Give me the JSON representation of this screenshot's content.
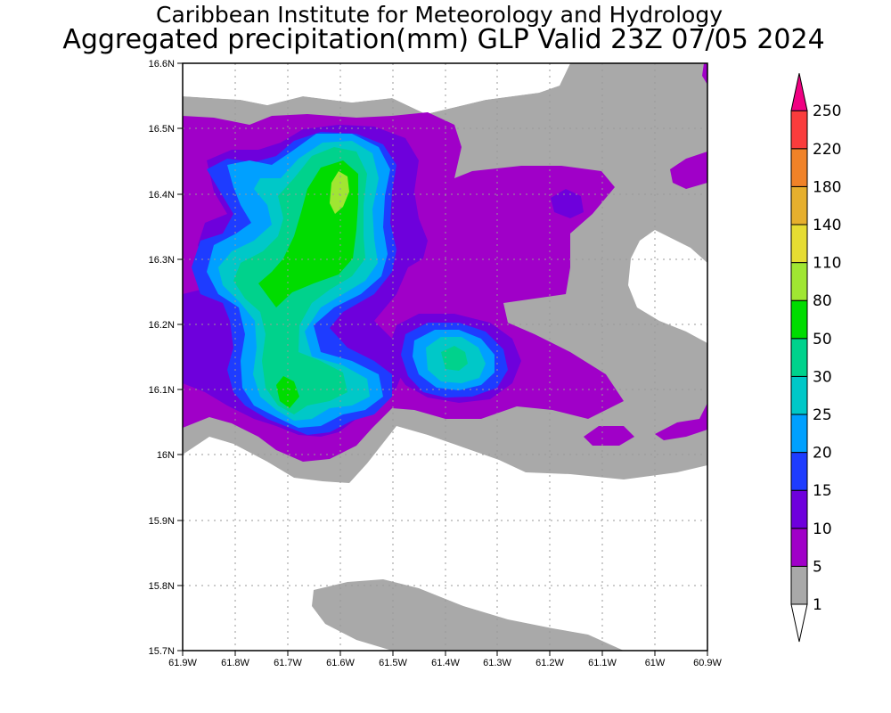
{
  "title": {
    "line1": "Caribbean Institute for Meteorology and Hydrology",
    "line2": "Aggregated precipitation(mm) GLP Valid 23Z 07/05 2024"
  },
  "map": {
    "lat_ticks": [
      "16.6N",
      "16.5N",
      "16.4N",
      "16.3N",
      "16.2N",
      "16.1N",
      "16N",
      "15.9N",
      "15.8N",
      "15.7N"
    ],
    "lon_ticks": [
      "61.9W",
      "61.8W",
      "61.7W",
      "61.6W",
      "61.5W",
      "61.4W",
      "61.3W",
      "61.2W",
      "61.1W",
      "61W",
      "60.9W"
    ],
    "lat_range": [
      15.7,
      16.6
    ],
    "lon_range": [
      -61.9,
      -60.9
    ],
    "grid": "dotted"
  },
  "colorbar": {
    "levels": [
      "1",
      "5",
      "10",
      "15",
      "20",
      "25",
      "30",
      "50",
      "80",
      "110",
      "140",
      "180",
      "220",
      "250"
    ],
    "colors": [
      "#a9a9a9",
      "#a000c8",
      "#6e00dc",
      "#1e3cff",
      "#00a0ff",
      "#00c8c8",
      "#00d28c",
      "#00dc00",
      "#a0e632",
      "#e6dc32",
      "#e6af2d",
      "#f08228",
      "#fa3c3c",
      "#f00082"
    ],
    "units": "mm"
  }
}
